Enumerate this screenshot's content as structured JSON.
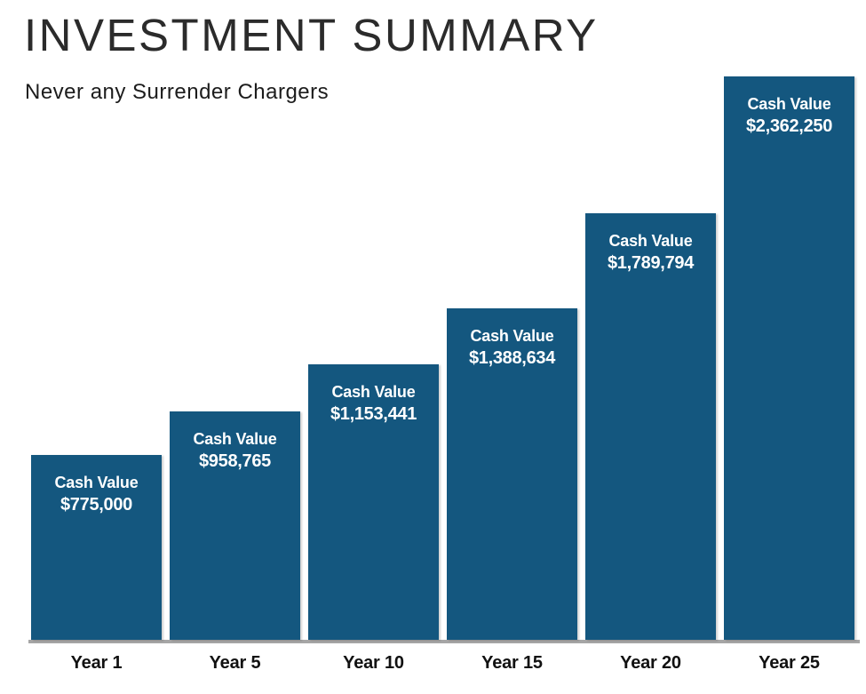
{
  "header": {
    "title": "INVESTMENT SUMMARY",
    "subtitle": "Never any Surrender Chargers"
  },
  "chart_data": {
    "type": "bar",
    "title": "INVESTMENT SUMMARY",
    "subtitle": "Never any Surrender Chargers",
    "categories": [
      "Year 1",
      "Year 5",
      "Year 10",
      "Year 15",
      "Year 20",
      "Year 25"
    ],
    "series": [
      {
        "name": "Cash Value",
        "values": [
          775000,
          958765,
          1153441,
          1388634,
          1789794,
          2362250
        ]
      }
    ],
    "bar_label_prefix": "Cash Value",
    "bar_value_labels": [
      "$775,000",
      "$958,765",
      "$1,153,441",
      "$1,388,634",
      "$1,789,794",
      "$2,362,250"
    ],
    "xlabel": "",
    "ylabel": "",
    "ylim": [
      0,
      2362250
    ],
    "grid": false,
    "legend": false,
    "bar_color": "#14577f",
    "bar_text_color": "#ffffff",
    "axis_line_color": "#a6a6a6"
  }
}
